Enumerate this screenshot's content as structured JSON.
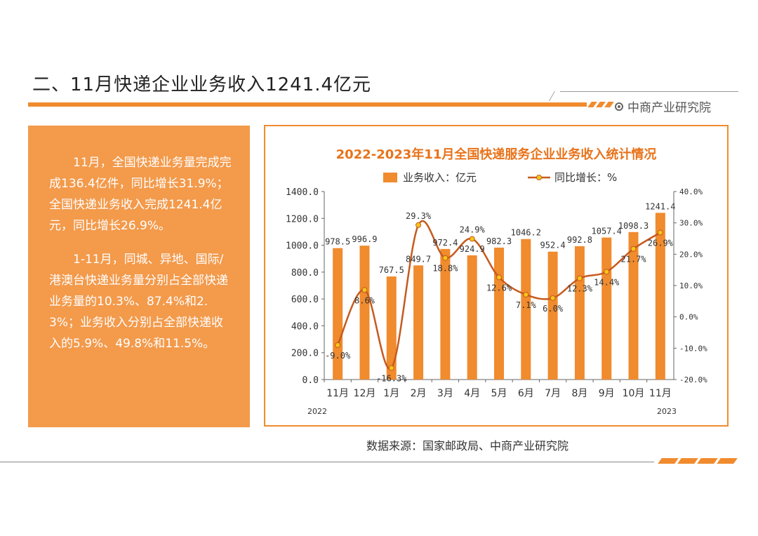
{
  "page": {
    "title": "二、11月快递企业业务收入1241.4亿元",
    "brand": "中商产业研究院",
    "source": "数据来源：国家邮政局、中商产业研究院"
  },
  "summary": {
    "paragraphs": [
      "11月，全国快递业务量完成完成136.4亿件，同比增长31.9%；全国快递业务收入完成1241.4亿元，同比增长26.9%。",
      "1-11月，同城、异地、国际/港澳台快递业务量分别占全部快递业务量的10.3%、87.4%和2.3%；业务收入分别占全部快递收入的5.9%、49.8%和11.5%。"
    ]
  },
  "chart_data": {
    "type": "bar",
    "title": "2022-2023年11月全国快递服务企业业务收入统计情况",
    "categories": [
      "11月",
      "12月",
      "1月",
      "2月",
      "3月",
      "4月",
      "5月",
      "6月",
      "7月",
      "8月",
      "9月",
      "10月",
      "11月"
    ],
    "year_labels": {
      "start": "2022",
      "end": "2023"
    },
    "series": [
      {
        "name": "业务收入：亿元",
        "type": "bar",
        "axis": "left",
        "values": [
          978.5,
          996.9,
          767.5,
          849.7,
          972.4,
          924.9,
          982.3,
          1046.2,
          952.4,
          992.8,
          1057.4,
          1098.3,
          1241.4
        ],
        "labels": [
          "978.5",
          "996.9",
          "767.5",
          "849.7",
          "972.4",
          "924.9",
          "982.3",
          "1046.2",
          "952.4",
          "992.8",
          "1057.4",
          "1098.3",
          "1241.4"
        ]
      },
      {
        "name": "同比增长：%",
        "type": "line",
        "axis": "right",
        "values": [
          -9.0,
          8.6,
          -16.3,
          29.3,
          18.8,
          24.9,
          12.6,
          7.1,
          6.0,
          12.3,
          14.4,
          21.7,
          26.9
        ],
        "labels": [
          "-9.0%",
          "8.6%",
          "-16.3%",
          "29.3%",
          "18.8%",
          "24.9%",
          "12.6%",
          "7.1%",
          "6.0%",
          "12.3%",
          "14.4%",
          "21.7%",
          "26.9%"
        ]
      }
    ],
    "ylim_left": [
      0,
      1400
    ],
    "ylim_right": [
      -20,
      40
    ],
    "left_ticks": [
      "0.0",
      "200.0",
      "400.0",
      "600.0",
      "800.0",
      "1000.0",
      "1200.0",
      "1400.0"
    ],
    "right_ticks": [
      "-20.0%",
      "-10.0%",
      "0.0%",
      "10.0%",
      "20.0%",
      "30.0%",
      "40.0%"
    ],
    "grid": false,
    "legend_position": "top",
    "colors": {
      "bar": "#f08b2e",
      "line": "#c65a1e",
      "marker": "#f5c518",
      "title": "#e8731a"
    }
  }
}
